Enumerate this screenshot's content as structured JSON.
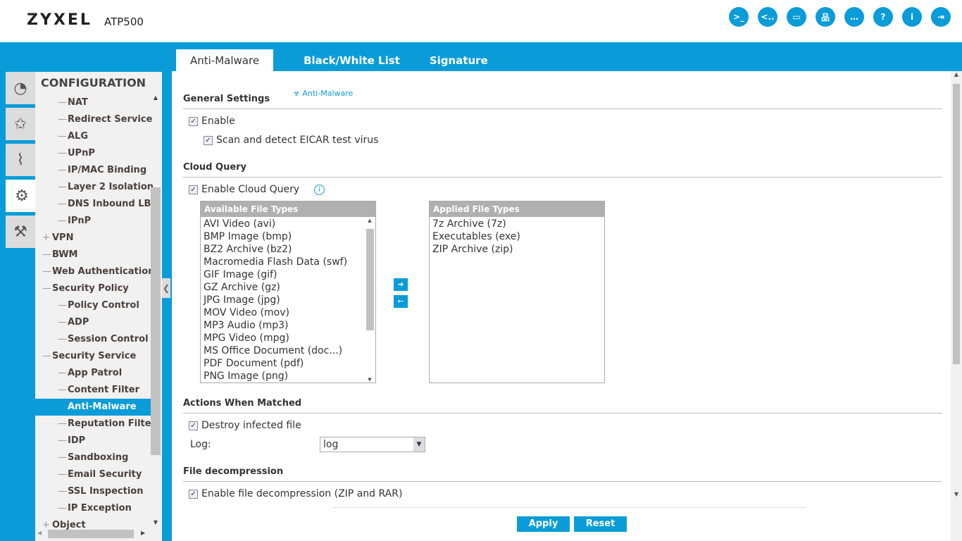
{
  "header": {
    "brand": "ZYXEL",
    "model": "ATP500",
    "icons": [
      {
        "name": "console-icon",
        "glyph": ">_"
      },
      {
        "name": "cli-icon",
        "glyph": "<.."
      },
      {
        "name": "windows-icon",
        "glyph": "▭"
      },
      {
        "name": "network-icon",
        "glyph": "品"
      },
      {
        "name": "messages-icon",
        "glyph": "…"
      },
      {
        "name": "help-icon",
        "glyph": "?"
      },
      {
        "name": "info-icon",
        "glyph": "i"
      },
      {
        "name": "logout-icon",
        "glyph": "⇥"
      }
    ]
  },
  "side_tabs": [
    {
      "name": "dashboard-icon",
      "glyph": "◔"
    },
    {
      "name": "wizard-icon",
      "glyph": "✩"
    },
    {
      "name": "monitor-icon",
      "glyph": "⌇"
    },
    {
      "name": "configuration-icon",
      "glyph": "⚙"
    },
    {
      "name": "maintenance-icon",
      "glyph": "⚒"
    }
  ],
  "nav": {
    "title": "CONFIGURATION",
    "items": [
      {
        "label": "NAT",
        "level": 2,
        "mark": "—"
      },
      {
        "label": "Redirect Service",
        "level": 2,
        "mark": "—"
      },
      {
        "label": "ALG",
        "level": 2,
        "mark": "—"
      },
      {
        "label": "UPnP",
        "level": 2,
        "mark": "—"
      },
      {
        "label": "IP/MAC Binding",
        "level": 2,
        "mark": "—"
      },
      {
        "label": "Layer 2 Isolation",
        "level": 2,
        "mark": "—"
      },
      {
        "label": "DNS Inbound LB",
        "level": 2,
        "mark": "—"
      },
      {
        "label": "IPnP",
        "level": 2,
        "mark": "—"
      },
      {
        "label": "VPN",
        "level": 1,
        "mark": "+"
      },
      {
        "label": "BWM",
        "level": 1,
        "mark": "—"
      },
      {
        "label": "Web Authentication",
        "level": 1,
        "mark": "—"
      },
      {
        "label": "Security Policy",
        "level": 1,
        "mark": "—"
      },
      {
        "label": "Policy Control",
        "level": 2,
        "mark": "—"
      },
      {
        "label": "ADP",
        "level": 2,
        "mark": "—"
      },
      {
        "label": "Session Control",
        "level": 2,
        "mark": "—"
      },
      {
        "label": "Security Service",
        "level": 1,
        "mark": "—"
      },
      {
        "label": "App Patrol",
        "level": 2,
        "mark": "—"
      },
      {
        "label": "Content Filter",
        "level": 2,
        "mark": "—"
      },
      {
        "label": "Anti-Malware",
        "level": 2,
        "mark": "—",
        "selected": true
      },
      {
        "label": "Reputation Filter",
        "level": 2,
        "mark": "—"
      },
      {
        "label": "IDP",
        "level": 2,
        "mark": "—"
      },
      {
        "label": "Sandboxing",
        "level": 2,
        "mark": "—"
      },
      {
        "label": "Email Security",
        "level": 2,
        "mark": "—"
      },
      {
        "label": "SSL Inspection",
        "level": 2,
        "mark": "—"
      },
      {
        "label": "IP Exception",
        "level": 2,
        "mark": "—"
      },
      {
        "label": "Object",
        "level": 1,
        "mark": "+"
      }
    ]
  },
  "tabs": [
    "Anti-Malware",
    "Black/White List",
    "Signature"
  ],
  "general": {
    "title": "General Settings",
    "link": "Anti-Malware",
    "enable": "Enable",
    "eicar": "Scan and detect EICAR test virus"
  },
  "cloud": {
    "title": "Cloud Query",
    "enable": "Enable Cloud Query",
    "available_header": "Available File Types",
    "available": [
      "AVI Video (avi)",
      "BMP Image (bmp)",
      "BZ2 Archive (bz2)",
      "Macromedia Flash Data (swf)",
      "GIF Image (gif)",
      "GZ Archive (gz)",
      "JPG Image (jpg)",
      "MOV Video (mov)",
      "MP3 Audio (mp3)",
      "MPG Video (mpg)",
      "MS Office Document (doc...)",
      "PDF Document (pdf)",
      "PNG Image (png)"
    ],
    "applied_header": "Applied File Types",
    "applied": [
      "7z Archive (7z)",
      "Executables (exe)",
      "ZIP Archive (zip)"
    ]
  },
  "actions": {
    "title": "Actions When Matched",
    "destroy": "Destroy infected file",
    "log_label": "Log:",
    "log_value": "log"
  },
  "decompression": {
    "title": "File decompression",
    "enable": "Enable file decompression (ZIP and RAR)"
  },
  "buttons": {
    "apply": "Apply",
    "reset": "Reset"
  }
}
